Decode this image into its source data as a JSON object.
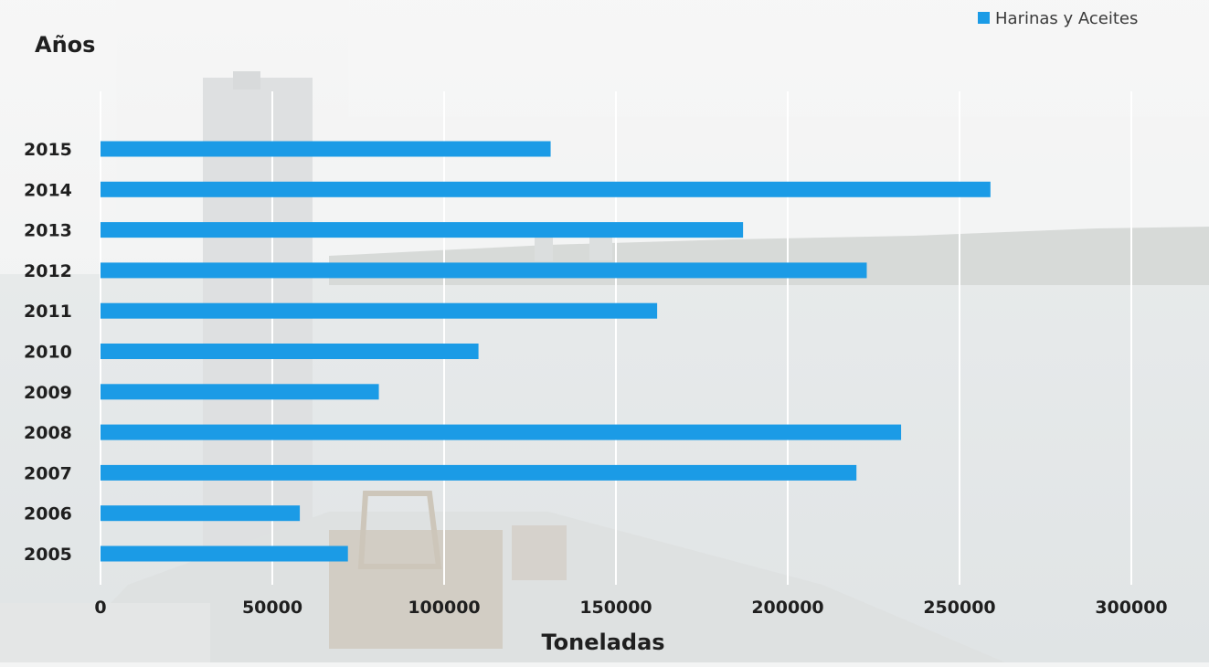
{
  "chart_data": {
    "type": "bar",
    "orientation": "horizontal",
    "categories": [
      "2015",
      "2014",
      "2013",
      "2012",
      "2011",
      "2010",
      "2009",
      "2008",
      "2007",
      "2006",
      "2005"
    ],
    "series": [
      {
        "name": "Harinas y Aceites",
        "color": "#1b9be6",
        "values": [
          131000,
          259000,
          187000,
          223000,
          162000,
          110000,
          81000,
          233000,
          220000,
          58000,
          72000
        ]
      }
    ],
    "xlabel": "Toneladas",
    "ylabel": "Años",
    "xlim": [
      0,
      300000
    ],
    "xticks": [
      "0",
      "50000",
      "100000",
      "150000",
      "200000",
      "250000",
      "300000"
    ],
    "grid": "vertical",
    "legend_position": "top-right",
    "background": "photo of port with crane and bay"
  }
}
